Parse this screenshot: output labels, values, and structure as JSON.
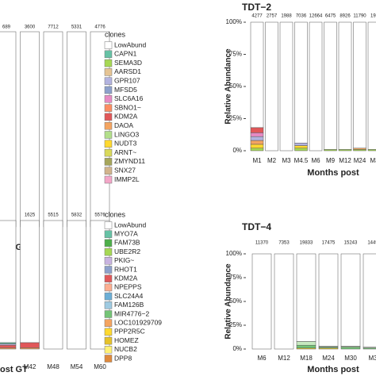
{
  "chart_data": [
    {
      "type": "bar",
      "stacked": true,
      "xlabel": "ost GT",
      "categories": [
        "36",
        "M42",
        "M48",
        "M54",
        "M60"
      ],
      "count_labels": [
        689,
        3600,
        7712,
        5331,
        4776
      ],
      "ylim": [
        0,
        100
      ],
      "legend_title": "clones",
      "series": [
        {
          "name": "LowAbund",
          "color": "#ffffff",
          "values": [
            97,
            97.5,
            98.5,
            98.5,
            98.5
          ]
        },
        {
          "name": "CAPN1",
          "color": "#66c2a5",
          "values": [
            0,
            0,
            0,
            0,
            0
          ]
        },
        {
          "name": "SEMA3D",
          "color": "#a6d854",
          "values": [
            0,
            0,
            0,
            0,
            0
          ]
        },
        {
          "name": "AARSD1",
          "color": "#e5c494",
          "values": [
            0,
            0,
            0,
            0,
            0
          ]
        },
        {
          "name": "GPR107",
          "color": "#b3b3e0",
          "values": [
            0,
            0,
            0,
            0,
            0
          ]
        },
        {
          "name": "MFSD5",
          "color": "#8da0cb",
          "values": [
            0,
            0,
            0,
            0,
            0
          ]
        },
        {
          "name": "SLC6A16",
          "color": "#e78ac3",
          "values": [
            0,
            0,
            0,
            0,
            0
          ]
        },
        {
          "name": "SBNO1~",
          "color": "#fc8d62",
          "values": [
            0,
            0,
            0,
            0,
            0
          ]
        },
        {
          "name": "KDM2A",
          "color": "#e15759",
          "values": [
            1,
            1,
            0,
            0,
            0
          ]
        },
        {
          "name": "DAOA",
          "color": "#f4a460",
          "values": [
            0,
            0,
            0,
            0,
            0
          ]
        },
        {
          "name": "LINGO3",
          "color": "#b2df8a",
          "values": [
            0,
            0,
            0,
            0,
            0
          ]
        },
        {
          "name": "NUDT3",
          "color": "#ffd92f",
          "values": [
            0,
            0,
            0,
            0,
            0
          ]
        },
        {
          "name": "ARNT~",
          "color": "#d9d95a",
          "values": [
            0,
            0,
            0,
            0,
            0
          ]
        },
        {
          "name": "ZMYND11",
          "color": "#a6a65a",
          "values": [
            2,
            1.5,
            1.5,
            1.5,
            1.5
          ]
        },
        {
          "name": "SNX27",
          "color": "#d2b48c",
          "values": [
            0,
            0,
            0,
            0,
            0
          ]
        },
        {
          "name": "IMMP2L",
          "color": "#f4a6c8",
          "values": [
            0,
            0,
            0,
            0,
            0
          ]
        }
      ]
    },
    {
      "type": "bar",
      "stacked": true,
      "title": "TDT−2",
      "ylabel": "Relative Abundance",
      "xlabel": "Months post",
      "categories": [
        "M1",
        "M2",
        "M3",
        "M4.5",
        "M6",
        "M9",
        "M12",
        "M24",
        "M3"
      ],
      "count_labels": [
        4277,
        2757,
        1988,
        7036,
        12664,
        6475,
        8926,
        11790,
        193
      ],
      "ylim": [
        0,
        100
      ],
      "yticks": [
        {
          "value": 0,
          "label": "0%"
        },
        {
          "value": 25,
          "label": "25%"
        },
        {
          "value": 50,
          "label": "50%"
        },
        {
          "value": 75,
          "label": "75%"
        },
        {
          "value": 100,
          "label": "100%"
        }
      ],
      "series": [
        {
          "color": "#ffffff",
          "values": [
            82,
            100,
            100,
            94,
            100,
            99,
            99,
            98,
            99
          ]
        },
        {
          "color": "#e15759",
          "values": [
            4,
            0,
            0,
            0,
            0,
            0,
            0,
            0,
            0
          ]
        },
        {
          "color": "#e78ac3",
          "values": [
            3,
            0,
            0,
            0,
            0,
            0,
            0,
            0,
            0
          ]
        },
        {
          "color": "#b3b3e0",
          "values": [
            3,
            0,
            0,
            2,
            0,
            0,
            0,
            0,
            0
          ]
        },
        {
          "color": "#f4a460",
          "values": [
            3,
            0,
            0,
            0,
            0,
            0,
            0,
            1,
            0
          ]
        },
        {
          "color": "#ffd92f",
          "values": [
            3,
            0,
            0,
            2,
            0,
            0,
            0,
            0,
            0
          ]
        },
        {
          "color": "#a6d854",
          "values": [
            2,
            0,
            0,
            2,
            0,
            1,
            1,
            1,
            1
          ]
        }
      ]
    },
    {
      "type": "bar",
      "stacked": true,
      "xlabel": "ost GT",
      "categories": [
        null,
        "M42",
        "M48",
        "M54",
        "M60"
      ],
      "count_labels": [
        null,
        1625,
        5515,
        5832,
        5576
      ],
      "ylim": [
        0,
        100
      ],
      "legend_title": "clones",
      "series": [
        {
          "name": "LowAbund",
          "color": "#ffffff",
          "values": [
            95,
            95,
            100,
            100,
            100
          ]
        },
        {
          "name": "MYO7A",
          "color": "#66c2a5",
          "values": [
            1,
            0,
            0,
            0,
            0
          ]
        },
        {
          "name": "FAM73B",
          "color": "#4daf4a",
          "values": [
            0,
            0,
            0,
            0,
            0
          ]
        },
        {
          "name": "UBE2R2",
          "color": "#a6d854",
          "values": [
            0,
            0,
            0,
            0,
            0
          ]
        },
        {
          "name": "PKIG~",
          "color": "#c9b3e0",
          "values": [
            1,
            0,
            0,
            0,
            0
          ]
        },
        {
          "name": "RHOT1",
          "color": "#8da0cb",
          "values": [
            0,
            0,
            0,
            0,
            0
          ]
        },
        {
          "name": "KDM2A",
          "color": "#e15759",
          "values": [
            2,
            4,
            0,
            0,
            0
          ]
        },
        {
          "name": "NPEPPS",
          "color": "#fcae91",
          "values": [
            0,
            0,
            0,
            0,
            0
          ]
        },
        {
          "name": "SLC24A4",
          "color": "#6baed6",
          "values": [
            0,
            0,
            0,
            0,
            0
          ]
        },
        {
          "name": "FAM126B",
          "color": "#9ecae1",
          "values": [
            0,
            0,
            0,
            0,
            0
          ]
        },
        {
          "name": "MIR4776−2",
          "color": "#74c476",
          "values": [
            0,
            0,
            0,
            0,
            0
          ]
        },
        {
          "name": "LOC101929709",
          "color": "#f4a460",
          "values": [
            1,
            1,
            0,
            0,
            0
          ]
        },
        {
          "name": "PPP2R5C",
          "color": "#ffd92f",
          "values": [
            0,
            0,
            0,
            0,
            0
          ]
        },
        {
          "name": "HOMEZ",
          "color": "#e6c229",
          "values": [
            0,
            0,
            0,
            0,
            0
          ]
        },
        {
          "name": "NUCB2",
          "color": "#fff176",
          "values": [
            0,
            0,
            0,
            0,
            0
          ]
        },
        {
          "name": "DPP8",
          "color": "#e08a3c",
          "values": [
            0,
            0,
            0,
            0,
            0
          ]
        }
      ]
    },
    {
      "type": "bar",
      "stacked": true,
      "title": "TDT−4",
      "ylabel": "Relative Abundance",
      "xlabel": "Months post",
      "categories": [
        "M6",
        "M12",
        "M18",
        "M24",
        "M30",
        "M3"
      ],
      "count_labels": [
        11370,
        7353,
        19833,
        17475,
        15243,
        1449
      ],
      "ylim": [
        0,
        100
      ],
      "yticks": [
        {
          "value": 0,
          "label": "0%"
        },
        {
          "value": 25,
          "label": "25%"
        },
        {
          "value": 50,
          "label": "50%"
        },
        {
          "value": 75,
          "label": "75%"
        },
        {
          "value": 100,
          "label": "100%"
        }
      ],
      "series": [
        {
          "color": "#ffffff",
          "values": [
            100,
            100,
            92,
            97,
            97,
            98
          ]
        },
        {
          "color": "#c7e9c0",
          "values": [
            0,
            0,
            4,
            1,
            1,
            1
          ]
        },
        {
          "color": "#74c476",
          "values": [
            0,
            0,
            3,
            1,
            2,
            1
          ]
        },
        {
          "color": "#ffd92f",
          "values": [
            0,
            0,
            1,
            1,
            0,
            0
          ]
        }
      ]
    }
  ]
}
